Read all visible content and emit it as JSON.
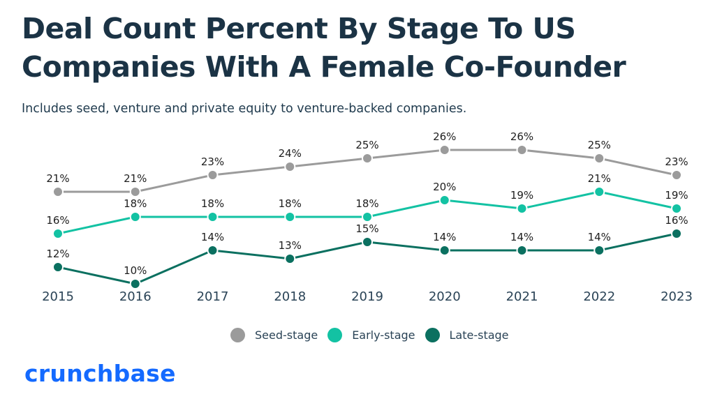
{
  "header": {
    "title": "Deal Count Percent By Stage To US Companies With A Female Co-Founder",
    "subtitle": "Includes seed, venture and private equity to venture-backed companies."
  },
  "brand": {
    "logo_text": "crunchbase",
    "logo_color": "#146aff"
  },
  "chart_data": {
    "type": "line",
    "title": "Deal Count Percent By Stage To US Companies With A Female Co-Founder",
    "subtitle": "Includes seed, venture and private equity to venture-backed companies.",
    "xlabel": "",
    "ylabel": "",
    "x": [
      "2015",
      "2016",
      "2017",
      "2018",
      "2019",
      "2020",
      "2021",
      "2022",
      "2023"
    ],
    "ylim": [
      10,
      26
    ],
    "grid": false,
    "legend_position": "bottom-center",
    "value_suffix": "%",
    "series": [
      {
        "name": "Seed-stage",
        "color": "#9b9b9b",
        "values": [
          21,
          21,
          23,
          24,
          25,
          26,
          26,
          25,
          23
        ]
      },
      {
        "name": "Early-stage",
        "color": "#13c2a3",
        "values": [
          16,
          18,
          18,
          18,
          18,
          20,
          19,
          21,
          19
        ]
      },
      {
        "name": "Late-stage",
        "color": "#0b7060",
        "values": [
          12,
          10,
          14,
          13,
          15,
          14,
          14,
          14,
          16
        ]
      }
    ]
  }
}
